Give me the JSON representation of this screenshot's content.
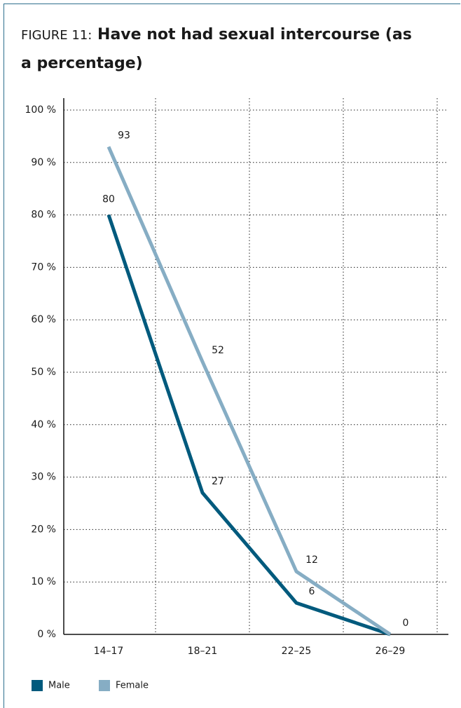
{
  "chart_data": {
    "type": "line",
    "label": "FIGURE 11:",
    "title": "Have not had sexual intercourse (as a percentage)",
    "categories": [
      "14–17",
      "18–21",
      "22–25",
      "26–29"
    ],
    "series": [
      {
        "name": "Male",
        "color": "#005a7d",
        "values": [
          80,
          27,
          6,
          0
        ],
        "value_labels": [
          "80",
          "27",
          "6",
          null
        ]
      },
      {
        "name": "Female",
        "color": "#86adc4",
        "values": [
          93,
          52,
          12,
          0
        ],
        "value_labels": [
          "93",
          "52",
          "12",
          "0"
        ]
      }
    ],
    "ylim": [
      0,
      100
    ],
    "yticks": [
      {
        "value": 0,
        "label": "0 %"
      },
      {
        "value": 10,
        "label": "10 %"
      },
      {
        "value": 20,
        "label": "20 %"
      },
      {
        "value": 30,
        "label": "30 %"
      },
      {
        "value": 40,
        "label": "40 %"
      },
      {
        "value": 50,
        "label": "50 %"
      },
      {
        "value": 60,
        "label": "60 %"
      },
      {
        "value": 70,
        "label": "70 %"
      },
      {
        "value": 80,
        "label": "80 %"
      },
      {
        "value": 90,
        "label": "90 %"
      },
      {
        "value": 100,
        "label": "100 %"
      }
    ],
    "grid": true,
    "legend": "bottom-left"
  }
}
